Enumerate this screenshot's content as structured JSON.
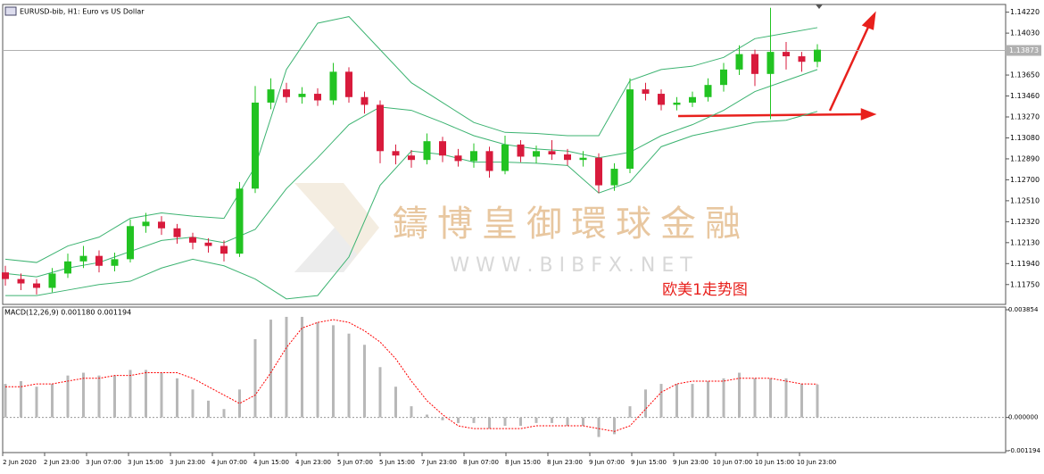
{
  "chart_data": [
    {
      "type": "candlestick",
      "title": "EURUSD-bib, H1: Euro vs US Dollar",
      "open": [
        1.1186,
        1.118,
        1.1176,
        1.1172,
        1.1185,
        1.1196,
        1.1201,
        1.1192,
        1.1198,
        1.1228,
        1.1232,
        1.1226,
        1.1218,
        1.1213,
        1.121,
        1.1203,
        1.1262,
        1.134,
        1.1352,
        1.1345,
        1.1348,
        1.1342,
        1.1368,
        1.1345,
        1.1338,
        1.1296,
        1.1292,
        1.1288,
        1.1305,
        1.1292,
        1.1287,
        1.1296,
        1.1278,
        1.1302,
        1.1291,
        1.1296,
        1.1293,
        1.1288,
        1.129,
        1.1265,
        1.128,
        1.1352,
        1.1348,
        1.1338,
        1.134,
        1.1345,
        1.1356,
        1.137,
        1.1384,
        1.1366,
        1.1386,
        1.1382,
        1.1377
      ],
      "high": [
        1.1192,
        1.1185,
        1.118,
        1.119,
        1.1203,
        1.121,
        1.1206,
        1.1204,
        1.1234,
        1.124,
        1.1237,
        1.123,
        1.1222,
        1.1217,
        1.1215,
        1.1268,
        1.1355,
        1.1362,
        1.1358,
        1.1354,
        1.1353,
        1.1376,
        1.1372,
        1.135,
        1.1342,
        1.1302,
        1.1297,
        1.1312,
        1.1309,
        1.1298,
        1.1303,
        1.13,
        1.131,
        1.1306,
        1.1301,
        1.1306,
        1.1298,
        1.1296,
        1.1294,
        1.1285,
        1.1362,
        1.1358,
        1.1352,
        1.1345,
        1.135,
        1.1362,
        1.1376,
        1.1392,
        1.1388,
        1.1426,
        1.1395,
        1.1386,
        1.1393
      ],
      "low": [
        1.1174,
        1.117,
        1.1166,
        1.1168,
        1.1181,
        1.119,
        1.1186,
        1.1187,
        1.1195,
        1.1222,
        1.122,
        1.1212,
        1.1207,
        1.1204,
        1.1196,
        1.12,
        1.1258,
        1.1334,
        1.134,
        1.1339,
        1.1337,
        1.1338,
        1.134,
        1.133,
        1.1285,
        1.1284,
        1.1281,
        1.1284,
        1.1286,
        1.1282,
        1.1281,
        1.1272,
        1.1275,
        1.1286,
        1.1285,
        1.1288,
        1.1283,
        1.1282,
        1.1258,
        1.126,
        1.1276,
        1.1342,
        1.1333,
        1.1333,
        1.1336,
        1.1341,
        1.135,
        1.1365,
        1.1355,
        1.1325,
        1.137,
        1.1368,
        1.1372
      ],
      "close": [
        1.118,
        1.1176,
        1.1172,
        1.1185,
        1.1196,
        1.1201,
        1.1192,
        1.1198,
        1.1228,
        1.1232,
        1.1226,
        1.1218,
        1.1213,
        1.121,
        1.1203,
        1.1262,
        1.134,
        1.1352,
        1.1345,
        1.1348,
        1.1342,
        1.1368,
        1.1345,
        1.1338,
        1.1296,
        1.1292,
        1.1288,
        1.1305,
        1.1292,
        1.1287,
        1.1296,
        1.1278,
        1.1302,
        1.1291,
        1.1296,
        1.1293,
        1.1288,
        1.129,
        1.1265,
        1.128,
        1.1352,
        1.1348,
        1.1338,
        1.134,
        1.1345,
        1.1356,
        1.137,
        1.1384,
        1.1366,
        1.1386,
        1.1382,
        1.1377,
        1.1388
      ],
      "up_color": "#22c322",
      "down_color": "#d81b3c",
      "bands": {
        "color": "#3cb371",
        "upper": [
          1.1198,
          1.1195,
          1.121,
          1.1218,
          1.1235,
          1.124,
          1.1237,
          1.1235,
          1.1282,
          1.137,
          1.1412,
          1.1418,
          1.1388,
          1.1358,
          1.134,
          1.1322,
          1.1313,
          1.1312,
          1.131,
          1.131,
          1.136,
          1.137,
          1.1373,
          1.1381,
          1.1398,
          1.1403,
          1.1408
        ],
        "middle": [
          1.1185,
          1.1182,
          1.119,
          1.1195,
          1.1205,
          1.1215,
          1.1218,
          1.1213,
          1.1225,
          1.1262,
          1.129,
          1.132,
          1.1336,
          1.1333,
          1.1322,
          1.131,
          1.1302,
          1.1298,
          1.1296,
          1.129,
          1.1295,
          1.131,
          1.132,
          1.1333,
          1.135,
          1.136,
          1.137
        ],
        "lower": [
          1.1165,
          1.1165,
          1.117,
          1.1175,
          1.1178,
          1.119,
          1.1198,
          1.1192,
          1.118,
          1.1162,
          1.1165,
          1.12,
          1.1265,
          1.1296,
          1.1293,
          1.1286,
          1.1286,
          1.1285,
          1.1283,
          1.1258,
          1.1268,
          1.13,
          1.131,
          1.1316,
          1.1322,
          1.1324,
          1.1332
        ]
      },
      "ylim": [
        1.1157,
        1.1429
      ],
      "yticks": [
        {
          "value": 1.1422,
          "label": "1.14220"
        },
        {
          "value": 1.1403,
          "label": "1.14030"
        },
        {
          "value": 1.1365,
          "label": "1.13650"
        },
        {
          "value": 1.1346,
          "label": "1.13460"
        },
        {
          "value": 1.1327,
          "label": "1.13270"
        },
        {
          "value": 1.1308,
          "label": "1.13080"
        },
        {
          "value": 1.1289,
          "label": "1.12890"
        },
        {
          "value": 1.127,
          "label": "1.12700"
        },
        {
          "value": 1.1251,
          "label": "1.12510"
        },
        {
          "value": 1.1232,
          "label": "1.12320"
        },
        {
          "value": 1.1213,
          "label": "1.12130"
        },
        {
          "value": 1.1194,
          "label": "1.11940"
        },
        {
          "value": 1.1175,
          "label": "1.11750"
        }
      ],
      "current_price": {
        "value": 1.13873,
        "label": "1.13873"
      },
      "annotation": "欧美1走势图",
      "watermark": [
        "鑄博皇御環球金融",
        "W W W . B I B F X . N E T"
      ]
    },
    {
      "type": "macd",
      "title": "MACD(12,26,9) 0.001180 0.001194",
      "values": [
        0.0012,
        0.0013,
        0.0011,
        0.0012,
        0.0015,
        0.0016,
        0.0015,
        0.0015,
        0.0017,
        0.0017,
        0.0016,
        0.0014,
        0.001,
        0.0006,
        0.0003,
        0.001,
        0.0028,
        0.0035,
        0.0036,
        0.0036,
        0.0034,
        0.0033,
        0.003,
        0.0026,
        0.0018,
        0.0011,
        0.0004,
        0.0001,
        -0.0001,
        -0.0002,
        -0.0002,
        -0.0004,
        -0.0003,
        -0.0003,
        -0.0002,
        -0.0002,
        -0.0003,
        -0.0003,
        -0.0007,
        -0.0006,
        0.0004,
        0.001,
        0.0012,
        0.0012,
        0.0012,
        0.0013,
        0.0014,
        0.0016,
        0.0014,
        0.0014,
        0.0014,
        0.0012,
        0.00118
      ],
      "signal": [
        0.0011,
        0.0011,
        0.0012,
        0.0012,
        0.0013,
        0.0014,
        0.0014,
        0.0015,
        0.0015,
        0.0016,
        0.0016,
        0.0016,
        0.0014,
        0.0011,
        0.0008,
        0.0005,
        0.0008,
        0.0016,
        0.0025,
        0.0032,
        0.0034,
        0.0035,
        0.0034,
        0.0031,
        0.0027,
        0.0021,
        0.0013,
        0.0006,
        0.0001,
        -0.0003,
        -0.0004,
        -0.0004,
        -0.0004,
        -0.0004,
        -0.0003,
        -0.0003,
        -0.0003,
        -0.0003,
        -0.0004,
        -0.0005,
        -0.0003,
        0.0003,
        0.0009,
        0.0012,
        0.0013,
        0.0013,
        0.0013,
        0.0014,
        0.0014,
        0.0014,
        0.0013,
        0.0012,
        0.001194
      ],
      "color": "#b8b8b8",
      "signal_color": "#ff0000",
      "ylim": [
        -0.001194,
        0.003854
      ],
      "yticks": [
        0.003854,
        {
          "value": 0,
          "label": "0.000000"
        },
        {
          "value": -0.001194,
          "label": "-0.001194"
        }
      ],
      "x_labels": [
        "2 Jun 2020",
        "2 Jun 23:00",
        "3 Jun 07:00",
        "3 Jun 15:00",
        "3 Jun 23:00",
        "4 Jun 07:00",
        "4 Jun 15:00",
        "4 Jun 23:00",
        "5 Jun 07:00",
        "5 Jun 15:00",
        "7 Jun 23:00",
        "8 Jun 07:00",
        "8 Jun 15:00",
        "8 Jun 23:00",
        "9 Jun 07:00",
        "9 Jun 15:00",
        "9 Jun 23:00",
        "10 Jun 07:00",
        "10 Jun 15:00",
        "10 Jun 23:00"
      ]
    }
  ]
}
